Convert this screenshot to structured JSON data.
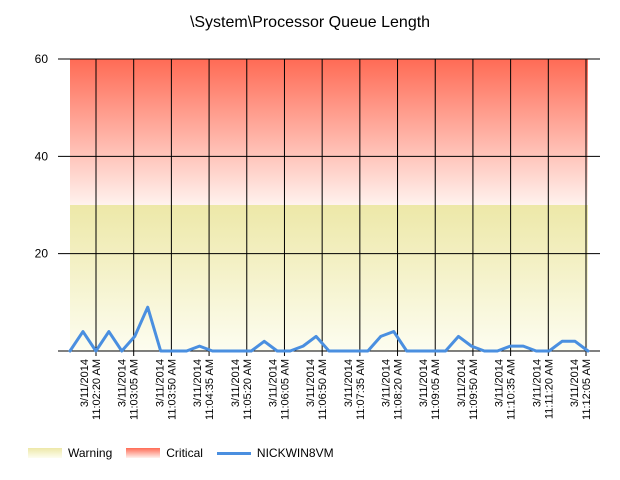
{
  "chart_data": {
    "type": "line",
    "title": "\\System\\Processor Queue Length",
    "xlabel": "",
    "ylabel": "",
    "ylim": [
      0,
      60
    ],
    "yticks": [
      0,
      20,
      40,
      60
    ],
    "grid": true,
    "legend_position": "bottom-left",
    "x_start": "3/11/2014 11:01:50 AM",
    "x_end": "3/11/2014 11:12:05 AM",
    "x_ticks": [
      "3/11/2014 11:02:20 AM",
      "3/11/2014 11:03:05 AM",
      "3/11/2014 11:03:50 AM",
      "3/11/2014 11:04:35 AM",
      "3/11/2014 11:05:20 AM",
      "3/11/2014 11:06:05 AM",
      "3/11/2014 11:06:50 AM",
      "3/11/2014 11:07:35 AM",
      "3/11/2014 11:08:20 AM",
      "3/11/2014 11:09:05 AM",
      "3/11/2014 11:09:50 AM",
      "3/11/2014 11:10:35 AM",
      "3/11/2014 11:11:20 AM",
      "3/11/2014 11:12:05 AM"
    ],
    "bands": [
      {
        "name": "Warning",
        "from": 0,
        "to": 30,
        "color_top": "#ede8a8",
        "color_bottom": "#fdfdf0"
      },
      {
        "name": "Critical",
        "from": 30,
        "to": 60,
        "color_top": "#ff6b55",
        "color_bottom": "#fff2ee"
      }
    ],
    "series": [
      {
        "name": "NICKWIN8VM",
        "color": "#4a8fe0",
        "values": [
          0,
          4,
          0,
          4,
          0,
          3,
          9,
          0,
          0,
          0,
          1,
          0,
          0,
          0,
          0,
          2,
          0,
          0,
          1,
          3,
          0,
          0,
          0,
          0,
          3,
          4,
          0,
          0,
          0,
          0,
          3,
          1,
          0,
          0,
          1,
          1,
          0,
          0,
          2,
          2,
          0
        ]
      }
    ]
  },
  "legend": {
    "warning_label": "Warning",
    "critical_label": "Critical",
    "series_label": "NICKWIN8VM"
  }
}
